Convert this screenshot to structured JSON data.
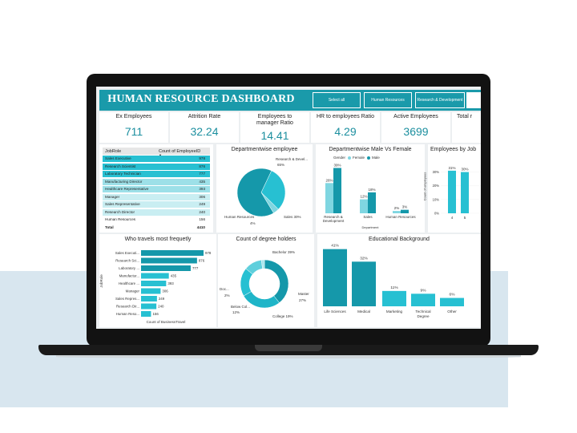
{
  "dashboard": {
    "title": "HUMAN RESOURCE DASHBOARD",
    "slicers": [
      "Select all",
      "Human Resources",
      "Research & Development"
    ]
  },
  "kpis": [
    {
      "label": "Ex Employees",
      "value": "711"
    },
    {
      "label": "Attrition Rate",
      "value": "32.24"
    },
    {
      "label": "Employees to manager Ratio",
      "value": "14.41"
    },
    {
      "label": "HR to employees Ratio",
      "value": "4.29"
    },
    {
      "label": "Active Employees",
      "value": "3699"
    },
    {
      "label": "Total r",
      "value": ""
    }
  ],
  "table": {
    "headers": [
      "JobRole",
      "Count of EmployeeID"
    ],
    "rows": [
      {
        "role": "Sales Executive",
        "count": "978"
      },
      {
        "role": "Research Scientist",
        "count": "876"
      },
      {
        "role": "Laboratory Technician",
        "count": "777"
      },
      {
        "role": "Manufacturing Director",
        "count": "435"
      },
      {
        "role": "Healthcare Representative",
        "count": "393"
      },
      {
        "role": "Manager",
        "count": "306"
      },
      {
        "role": "Sales Representative",
        "count": "249"
      },
      {
        "role": "Research Director",
        "count": "240"
      },
      {
        "role": "Human Resources",
        "count": "156"
      }
    ],
    "total_label": "Total",
    "total_value": "4410"
  },
  "dept_pie": {
    "title": "Departmentwise employee",
    "labels": [
      "Research & Devel...",
      "65%",
      "Sales 30%",
      "Human Resources",
      "4%"
    ]
  },
  "dept_gender": {
    "title": "Departmentwise Male Vs Female",
    "legend_title": "Gender",
    "legend": [
      "Female",
      "Male"
    ],
    "xlabel": "Department",
    "categories": [
      "Research & Development",
      "Sales",
      "Human Resources"
    ],
    "female_labels": [
      "26%",
      "12%",
      "2%"
    ],
    "male_labels": [
      "39%",
      "18%",
      "3%"
    ]
  },
  "job_level": {
    "title": "Employees by Job",
    "ylabel": "Count of employees",
    "ticks": [
      "30%",
      "20%",
      "10%",
      "0%"
    ],
    "bar_labels": [
      "31%",
      "30%"
    ],
    "x_labels": [
      "4",
      "5"
    ]
  },
  "travel": {
    "title": "Who travels most frequetly",
    "ylabel": "JobRole",
    "xlabel": "Count of BusinessTravel",
    "labels": [
      "Sales Executi...",
      "Research Sci...",
      "Laboratory ...",
      "Manufactur...",
      "Healthcare ...",
      "Manager",
      "Sales Repres...",
      "Research Dir...",
      "Human Reso..."
    ],
    "value_labels": [
      "978",
      "876",
      "777",
      "435",
      "393",
      "306",
      "249",
      "240",
      "156"
    ]
  },
  "degree": {
    "title": "Count of degree holders",
    "labels": [
      "Bachelor 39%",
      "Master",
      "27%",
      "College 19%",
      "Below Col...",
      "12%",
      "Doc...",
      "2%"
    ]
  },
  "education": {
    "title": "Educational Background",
    "categories": [
      "Life Sciences",
      "Medical",
      "Marketing",
      "Technical Degree",
      "Other"
    ],
    "value_labels": [
      "41%",
      "32%",
      "11%",
      "9%",
      "6%"
    ]
  },
  "colors": {
    "accent": "#1a9aaa",
    "teal_dark": "#1598aa",
    "teal_mid": "#27c0d2",
    "teal_light": "#7fd6e1"
  },
  "chart_data": [
    {
      "type": "bar",
      "title": "Who travels most frequetly",
      "orientation": "horizontal",
      "categories": [
        "Sales Executi...",
        "Research Sci...",
        "Laboratory ...",
        "Manufactur...",
        "Healthcare ...",
        "Manager",
        "Sales Repres...",
        "Research Dir...",
        "Human Reso..."
      ],
      "values": [
        978,
        876,
        777,
        435,
        393,
        306,
        249,
        240,
        156
      ],
      "xlabel": "Count of BusinessTravel",
      "ylabel": "JobRole"
    },
    {
      "type": "pie",
      "title": "Departmentwise employee",
      "categories": [
        "Research & Development",
        "Sales",
        "Human Resources"
      ],
      "values": [
        65,
        30,
        4
      ]
    },
    {
      "type": "bar",
      "title": "Departmentwise Male Vs Female",
      "categories": [
        "Research & Development",
        "Sales",
        "Human Resources"
      ],
      "series": [
        {
          "name": "Female",
          "values": [
            26,
            12,
            2
          ]
        },
        {
          "name": "Male",
          "values": [
            39,
            18,
            3
          ]
        }
      ],
      "xlabel": "Department"
    },
    {
      "type": "pie",
      "title": "Count of degree holders",
      "categories": [
        "Bachelor",
        "Master",
        "College",
        "Below College",
        "Doctor"
      ],
      "values": [
        39,
        27,
        19,
        12,
        2
      ]
    },
    {
      "type": "bar",
      "title": "Educational Background",
      "categories": [
        "Life Sciences",
        "Medical",
        "Marketing",
        "Technical Degree",
        "Other"
      ],
      "values": [
        41,
        32,
        11,
        9,
        6
      ]
    },
    {
      "type": "bar",
      "title": "Employees by Job",
      "categories": [
        "4",
        "5"
      ],
      "values": [
        31,
        30
      ],
      "ylabel": "Count of employees",
      "ylim": [
        0,
        35
      ]
    }
  ]
}
